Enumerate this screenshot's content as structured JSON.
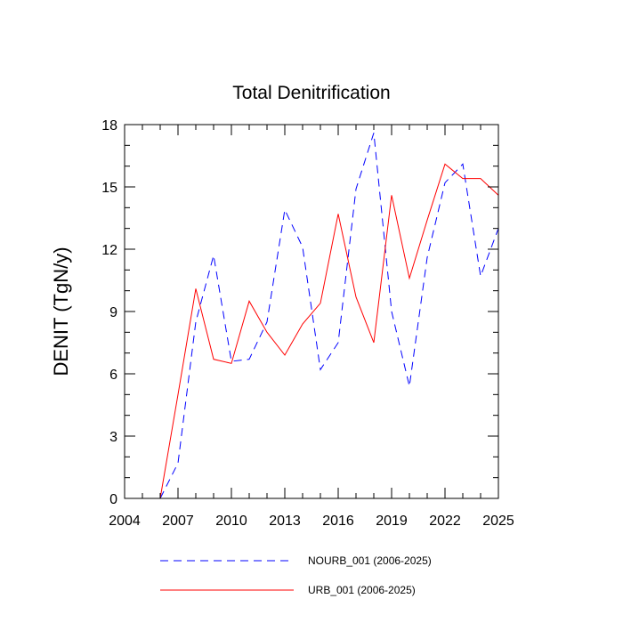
{
  "chart_data": {
    "type": "line",
    "title": "Total Denitrification",
    "xlabel": "",
    "ylabel": "DENIT  (TgN/y)",
    "xlim": [
      2004,
      2025
    ],
    "ylim": [
      0,
      18
    ],
    "xticks": [
      2004,
      2007,
      2010,
      2013,
      2016,
      2019,
      2022,
      2025
    ],
    "yticks": [
      0,
      3,
      6,
      9,
      12,
      15,
      18
    ],
    "x": [
      2006,
      2007,
      2008,
      2009,
      2010,
      2011,
      2012,
      2013,
      2014,
      2015,
      2016,
      2017,
      2018,
      2019,
      2020,
      2021,
      2022,
      2023,
      2024,
      2025
    ],
    "series": [
      {
        "name": "NOURB_001 (2006-2025)",
        "color": "#0000ff",
        "style": "dashed",
        "values": [
          0.0,
          1.7,
          8.5,
          11.7,
          6.6,
          6.7,
          8.5,
          13.9,
          12.1,
          6.2,
          7.5,
          14.9,
          17.6,
          9.0,
          5.4,
          11.6,
          15.2,
          16.1,
          10.7,
          13.0
        ]
      },
      {
        "name": "URB_001 (2006-2025)",
        "color": "#ff0000",
        "style": "solid",
        "values": [
          0.0,
          5.0,
          10.1,
          6.7,
          6.5,
          9.5,
          8.0,
          6.9,
          8.4,
          9.4,
          13.7,
          9.7,
          7.5,
          14.6,
          10.6,
          13.4,
          16.1,
          15.4,
          15.4,
          14.6
        ]
      }
    ],
    "legend_position": "bottom"
  }
}
